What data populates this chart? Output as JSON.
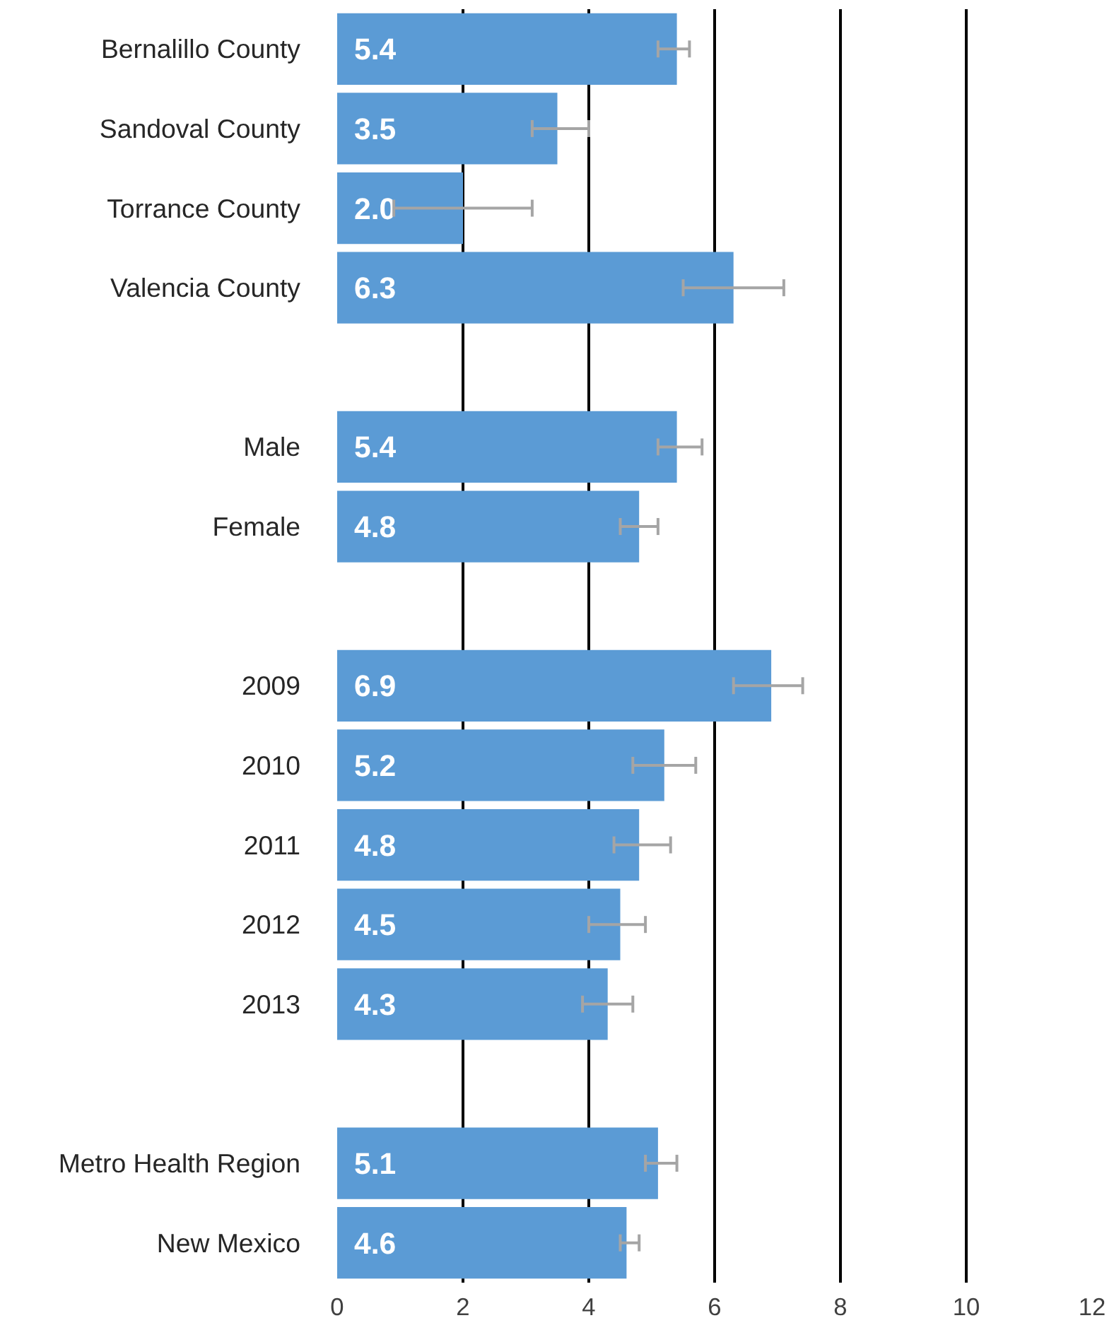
{
  "chart_data": {
    "type": "bar",
    "orientation": "horizontal",
    "categories": [
      "Bernalillo County",
      "Sandoval County",
      "Torrance County",
      "Valencia County",
      null,
      "Male",
      "Female",
      null,
      "2009",
      "2010",
      "2011",
      "2012",
      "2013",
      null,
      "Metro Health Region",
      "New Mexico"
    ],
    "values": [
      5.4,
      3.5,
      2.0,
      6.3,
      null,
      5.4,
      4.8,
      null,
      6.9,
      5.2,
      4.8,
      4.5,
      4.3,
      null,
      5.1,
      4.6
    ],
    "errors": [
      [
        5.1,
        5.6
      ],
      [
        3.1,
        4.0
      ],
      [
        0.9,
        3.1
      ],
      [
        5.5,
        7.1
      ],
      null,
      [
        5.1,
        5.8
      ],
      [
        4.5,
        5.1
      ],
      null,
      [
        6.3,
        7.4
      ],
      [
        4.7,
        5.7
      ],
      [
        4.4,
        5.3
      ],
      [
        4.0,
        4.9
      ],
      [
        3.9,
        4.7
      ],
      null,
      [
        4.9,
        5.4
      ],
      [
        4.5,
        4.8
      ]
    ],
    "color": "#5b9bd5",
    "value_labels": [
      "5.4",
      "3.5",
      "2.0",
      "6.3",
      null,
      "5.4",
      "4.8",
      null,
      "6.9",
      "5.2",
      "4.8",
      "4.5",
      "4.3",
      null,
      "5.1",
      "4.6"
    ],
    "xlim": [
      0,
      12
    ],
    "xticks": [
      0,
      2,
      4,
      6,
      8,
      10,
      12
    ],
    "grid": "x"
  }
}
